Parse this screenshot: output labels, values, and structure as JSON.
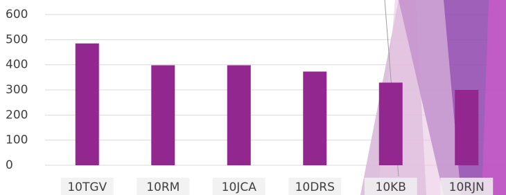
{
  "chart_data": {
    "type": "bar",
    "categories": [
      "10TGV",
      "10RM",
      "10JCA",
      "10DRS",
      "10KB",
      "10RJN"
    ],
    "values": [
      485,
      398,
      398,
      373,
      329,
      300
    ],
    "color": "#92278f",
    "ylim": [
      0,
      600
    ],
    "yticks": [
      0,
      100,
      200,
      300,
      400,
      500,
      600
    ],
    "grid": true
  }
}
